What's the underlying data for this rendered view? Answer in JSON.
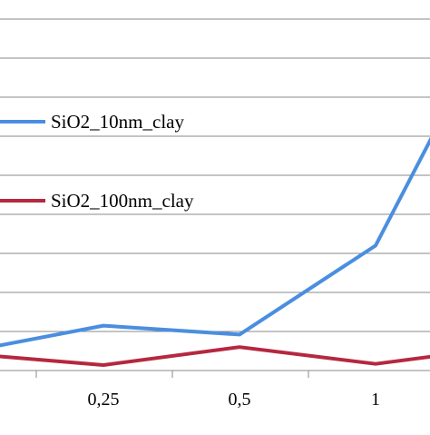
{
  "chart_data": {
    "type": "line",
    "categories": [
      "",
      "0,25",
      "0,5",
      "1",
      ""
    ],
    "series": [
      {
        "name": "SiO2_10nm_clay",
        "color": "#4a8ee0",
        "values": [
          0.6,
          1.15,
          0.92,
          3.2,
          6.6
        ]
      },
      {
        "name": "SiO2_100nm_clay",
        "color": "#b5283f",
        "values": [
          0.38,
          0.14,
          0.6,
          0.17,
          0.4
        ]
      }
    ],
    "ylim": [
      0,
      10
    ],
    "grid": true,
    "legend": "left"
  }
}
